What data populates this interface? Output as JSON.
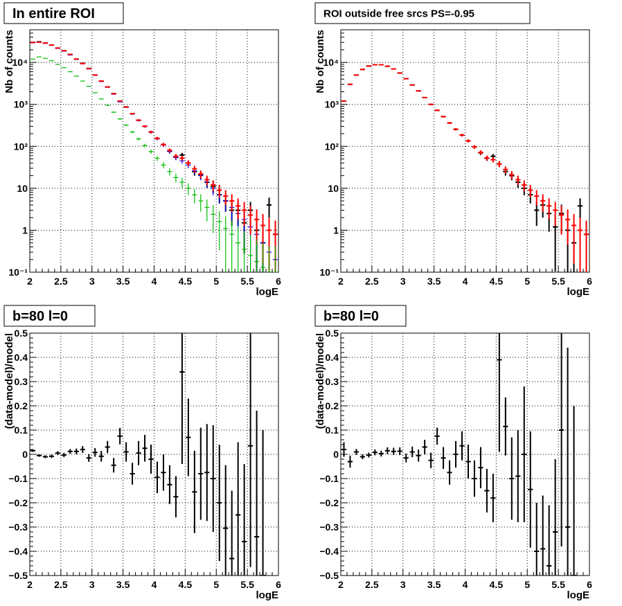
{
  "chart_data": [
    {
      "type": "scatter",
      "id": "top-left",
      "title": "In entire ROI",
      "xlabel": "logE",
      "ylabel": "Nb of counts",
      "xlim": [
        2,
        6
      ],
      "ylim": [
        0.1,
        60000
      ],
      "yscale": "log",
      "grid": true,
      "x_ticks": [
        2,
        2.5,
        3,
        3.5,
        4,
        4.5,
        5,
        5.5,
        6
      ],
      "x_tick_labels": [
        "2",
        "2.5",
        "3",
        "3.5",
        "4",
        "4.5",
        "5",
        "5.5",
        "6"
      ],
      "y_ticks": [
        0.1,
        1,
        10,
        100,
        1000,
        10000
      ],
      "y_tick_labels": [
        "10⁻¹",
        "1",
        "10",
        "10²",
        "10³",
        "10⁴"
      ],
      "x": [
        2.05,
        2.15,
        2.25,
        2.35,
        2.45,
        2.55,
        2.65,
        2.75,
        2.85,
        2.95,
        3.05,
        3.15,
        3.25,
        3.35,
        3.45,
        3.55,
        3.65,
        3.75,
        3.85,
        3.95,
        4.05,
        4.15,
        4.25,
        4.35,
        4.45,
        4.55,
        4.65,
        4.75,
        4.85,
        4.95,
        5.05,
        5.15,
        5.25,
        5.35,
        5.45,
        5.55,
        5.65,
        5.75,
        5.85,
        5.95
      ],
      "series": [
        {
          "color": "#000000",
          "values": [
            30000,
            31000,
            29000,
            26000,
            22000,
            19000,
            15500,
            12000,
            9500,
            7200,
            5000,
            3600,
            2600,
            1800,
            1200,
            870,
            600,
            420,
            300,
            220,
            155,
            110,
            78,
            56,
            62,
            40,
            25,
            21,
            14,
            11,
            7,
            5,
            3,
            3,
            1.5,
            3,
            1,
            0.5,
            4,
            0.8
          ]
        },
        {
          "color": "#0000ff",
          "values": [
            29500,
            30000,
            28500,
            25500,
            21500,
            18500,
            15000,
            11800,
            9300,
            7000,
            4900,
            3500,
            2550,
            1750,
            1150,
            850,
            590,
            410,
            295,
            215,
            150,
            107,
            75,
            54,
            45,
            36,
            26,
            20,
            14,
            10,
            7,
            5,
            3.5,
            2.5,
            1.8,
            1.2,
            0.8,
            0.5,
            0.3,
            0.2
          ]
        },
        {
          "color": "#ff0000",
          "values": [
            30000,
            30500,
            29000,
            26000,
            22000,
            19000,
            15500,
            12000,
            9400,
            7100,
            5000,
            3600,
            2600,
            1800,
            1200,
            860,
            600,
            420,
            300,
            220,
            155,
            110,
            80,
            58,
            52,
            40,
            29,
            22,
            16,
            12,
            9,
            6.5,
            5,
            3.8,
            3,
            2.3,
            1.8,
            1.3,
            1,
            0.8
          ]
        },
        {
          "color": "#00bb00",
          "values": [
            12000,
            13500,
            12500,
            11000,
            9000,
            7500,
            6000,
            4700,
            3600,
            2700,
            1900,
            1350,
            950,
            650,
            450,
            320,
            220,
            150,
            105,
            75,
            52,
            36,
            25,
            18,
            14,
            10,
            7,
            5,
            3.5,
            2.4,
            1.6,
            1.1,
            0.8,
            0.5,
            0.35,
            0.25,
            0.18,
            0.13,
            0.1,
            0.1
          ]
        }
      ]
    },
    {
      "type": "scatter",
      "id": "top-right",
      "title": "ROI outside free srcs PS=-0.95",
      "xlabel": "logE",
      "ylabel": "Nb of counts",
      "xlim": [
        2,
        6
      ],
      "ylim": [
        0.1,
        60000
      ],
      "yscale": "log",
      "grid": true,
      "x_ticks": [
        2,
        2.5,
        3,
        3.5,
        4,
        4.5,
        5,
        5.5,
        6
      ],
      "x_tick_labels": [
        "2",
        "2.5",
        "3",
        "3.5",
        "4",
        "4.5",
        "5",
        "5.5",
        "6"
      ],
      "y_ticks": [
        0.1,
        1,
        10,
        100,
        1000,
        10000
      ],
      "y_tick_labels": [
        "10⁻¹",
        "1",
        "10",
        "10²",
        "10³",
        "10⁴"
      ],
      "x": [
        2.05,
        2.15,
        2.25,
        2.35,
        2.45,
        2.55,
        2.65,
        2.75,
        2.85,
        2.95,
        3.05,
        3.15,
        3.25,
        3.35,
        3.45,
        3.55,
        3.65,
        3.75,
        3.85,
        3.95,
        4.05,
        4.15,
        4.25,
        4.35,
        4.45,
        4.55,
        4.65,
        4.75,
        4.85,
        4.95,
        5.05,
        5.15,
        5.25,
        5.35,
        5.45,
        5.55,
        5.65,
        5.75,
        5.85,
        5.95
      ],
      "series": [
        {
          "color": "#000000",
          "values": [
            1200,
            3000,
            5000,
            6800,
            8200,
            8800,
            8800,
            8100,
            7000,
            5600,
            4100,
            2900,
            2100,
            1450,
            1000,
            720,
            510,
            360,
            255,
            185,
            135,
            97,
            70,
            52,
            58,
            38,
            25,
            20,
            14,
            10,
            7,
            3,
            4,
            2.5,
            1.2,
            2.5,
            1,
            0.5,
            3.8,
            0.8
          ]
        },
        {
          "color": "#ff0000",
          "values": [
            1200,
            3000,
            5000,
            6800,
            8200,
            8800,
            8800,
            8100,
            7000,
            5600,
            4100,
            2900,
            2100,
            1450,
            1000,
            720,
            510,
            360,
            255,
            185,
            135,
            97,
            72,
            53,
            48,
            38,
            28,
            21,
            16,
            12,
            9,
            6.5,
            5,
            3.8,
            3,
            2.3,
            1.8,
            1.3,
            1,
            0.8
          ]
        }
      ]
    },
    {
      "type": "scatter",
      "id": "bottom-left",
      "title": "b=80 l=0",
      "xlabel": "logE",
      "ylabel": "(data-model)/model",
      "xlim": [
        2,
        6
      ],
      "ylim": [
        -0.5,
        0.5
      ],
      "grid": true,
      "x_ticks": [
        2,
        2.5,
        3,
        3.5,
        4,
        4.5,
        5,
        5.5,
        6
      ],
      "x_tick_labels": [
        "2",
        "2.5",
        "3",
        "3.5",
        "4",
        "4.5",
        "5",
        "5.5",
        "6"
      ],
      "y_ticks": [
        -0.5,
        -0.4,
        -0.3,
        -0.2,
        -0.1,
        0,
        0.1,
        0.2,
        0.3,
        0.4,
        0.5
      ],
      "y_tick_labels": [
        "−0.5",
        "−0.4",
        "−0.3",
        "−0.2",
        "−0.1",
        "0",
        "0.1",
        "0.2",
        "0.3",
        "0.4",
        "0.5"
      ],
      "x": [
        2.05,
        2.15,
        2.25,
        2.35,
        2.45,
        2.55,
        2.65,
        2.75,
        2.85,
        2.95,
        3.05,
        3.15,
        3.25,
        3.35,
        3.45,
        3.55,
        3.65,
        3.75,
        3.85,
        3.95,
        4.05,
        4.15,
        4.25,
        4.35,
        4.45,
        4.55,
        4.65,
        4.75,
        4.85,
        4.95,
        5.05,
        5.15,
        5.25,
        5.35,
        5.45,
        5.55,
        5.65,
        5.75
      ],
      "series": [
        {
          "color": "#000000",
          "values": [
            0.015,
            -0.005,
            -0.01,
            -0.008,
            0.005,
            -0.003,
            0.012,
            0.012,
            0.02,
            -0.015,
            0.008,
            -0.008,
            0.03,
            -0.045,
            0.075,
            0.01,
            -0.08,
            0.005,
            0.025,
            -0.02,
            -0.095,
            -0.075,
            -0.125,
            -0.175,
            0.34,
            0.07,
            -0.155,
            -0.08,
            -0.075,
            -0.1,
            -0.2,
            -0.305,
            -0.43,
            -0.25,
            -0.36,
            0.035,
            -0.34,
            -0.5
          ],
          "errors": [
            0.005,
            0.005,
            0.006,
            0.007,
            0.008,
            0.009,
            0.01,
            0.012,
            0.014,
            0.016,
            0.018,
            0.022,
            0.025,
            0.03,
            0.034,
            0.04,
            0.045,
            0.05,
            0.055,
            0.06,
            0.065,
            0.075,
            0.08,
            0.085,
            0.38,
            0.16,
            0.17,
            0.19,
            0.2,
            0.22,
            0.24,
            0.26,
            0.28,
            0.3,
            0.32,
            0.5,
            0.52,
            0.6
          ]
        }
      ]
    },
    {
      "type": "scatter",
      "id": "bottom-right",
      "title": "b=80 l=0",
      "xlabel": "logE",
      "ylabel": "(data-model)/model",
      "xlim": [
        2,
        6
      ],
      "ylim": [
        -0.5,
        0.5
      ],
      "grid": true,
      "x_ticks": [
        2,
        2.5,
        3,
        3.5,
        4,
        4.5,
        5,
        5.5,
        6
      ],
      "x_tick_labels": [
        "2",
        "2.5",
        "3",
        "3.5",
        "4",
        "4.5",
        "5",
        "5.5",
        "6"
      ],
      "y_ticks": [
        -0.5,
        -0.4,
        -0.3,
        -0.2,
        -0.1,
        0,
        0.1,
        0.2,
        0.3,
        0.4,
        0.5
      ],
      "y_tick_labels": [
        "−0.5",
        "−0.4",
        "−0.3",
        "−0.2",
        "−0.1",
        "0",
        "0.1",
        "0.2",
        "0.3",
        "0.4",
        "0.5"
      ],
      "x": [
        2.05,
        2.15,
        2.25,
        2.35,
        2.45,
        2.55,
        2.65,
        2.75,
        2.85,
        2.95,
        3.05,
        3.15,
        3.25,
        3.35,
        3.45,
        3.55,
        3.65,
        3.75,
        3.85,
        3.95,
        4.05,
        4.15,
        4.25,
        4.35,
        4.45,
        4.55,
        4.65,
        4.75,
        4.85,
        4.95,
        5.05,
        5.15,
        5.25,
        5.35,
        5.45,
        5.55,
        5.65,
        5.75
      ],
      "series": [
        {
          "color": "#000000",
          "values": [
            0.02,
            -0.03,
            0.01,
            -0.01,
            -0.003,
            0.008,
            0.003,
            0.015,
            0.012,
            0.013,
            -0.015,
            0.01,
            -0.005,
            0.03,
            -0.025,
            0.075,
            -0.015,
            -0.075,
            0.0,
            0.035,
            -0.03,
            -0.1,
            -0.055,
            -0.15,
            -0.18,
            0.39,
            0.115,
            -0.1,
            -0.09,
            0.0,
            -0.145,
            -0.4,
            -0.39,
            -0.46,
            -0.32,
            0.1,
            -0.3,
            -0.5
          ],
          "errors": [
            0.03,
            0.025,
            0.012,
            0.01,
            0.01,
            0.012,
            0.012,
            0.014,
            0.015,
            0.016,
            0.018,
            0.022,
            0.025,
            0.03,
            0.032,
            0.035,
            0.045,
            0.05,
            0.055,
            0.06,
            0.07,
            0.075,
            0.085,
            0.09,
            0.1,
            0.38,
            0.12,
            0.17,
            0.19,
            0.28,
            0.24,
            0.2,
            0.22,
            0.25,
            0.3,
            0.48,
            0.74,
            0.7
          ]
        }
      ]
    }
  ]
}
